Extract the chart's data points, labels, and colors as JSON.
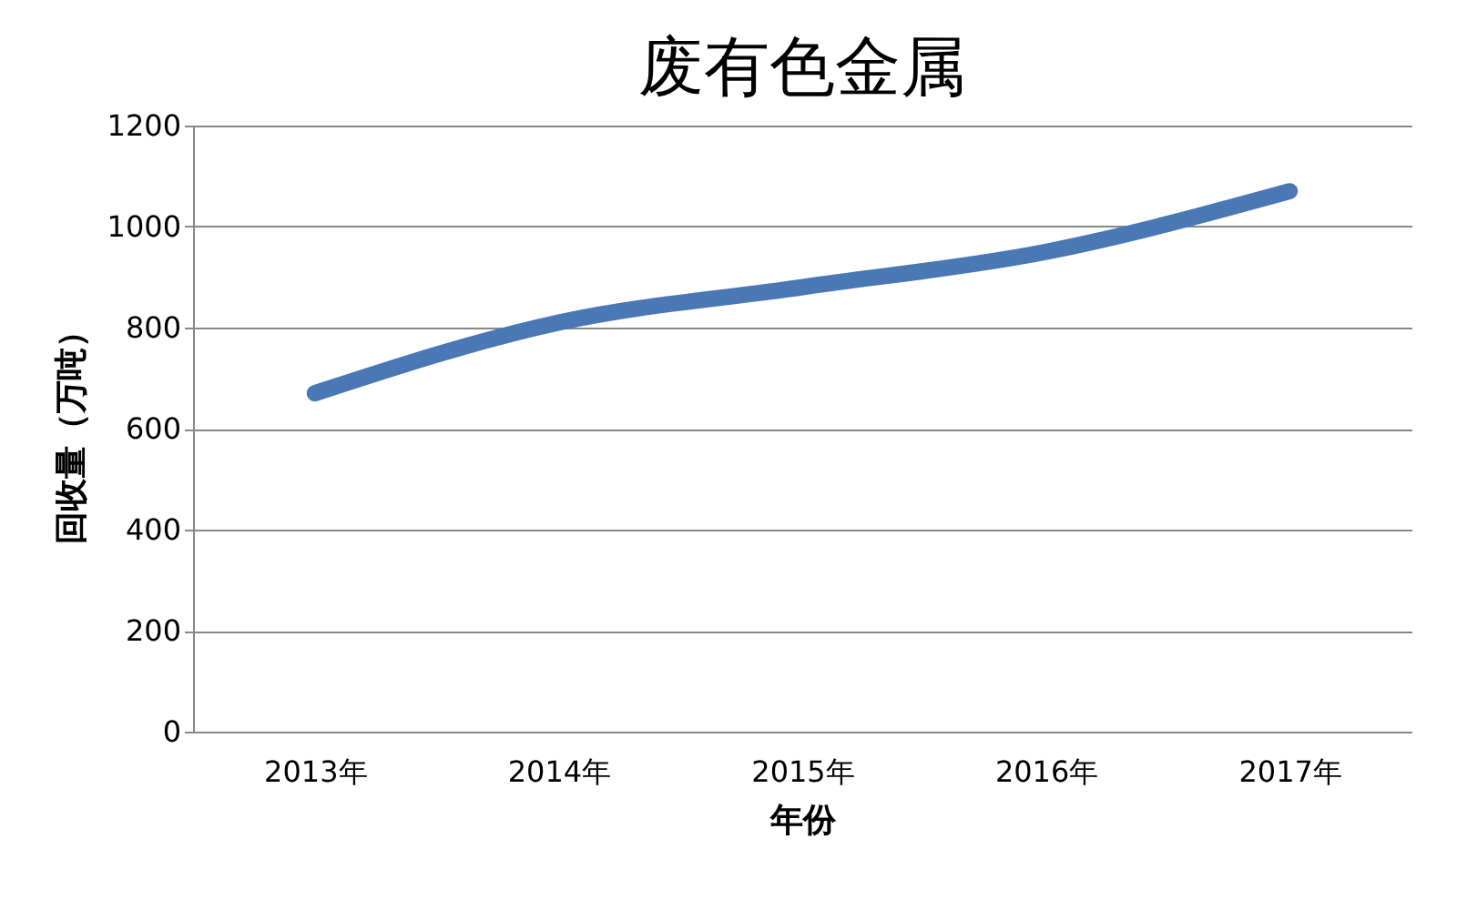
{
  "chart_data": {
    "type": "line",
    "title": "废有色金属",
    "xlabel": "年份",
    "ylabel": "回收量（万吨）",
    "categories": [
      "2013年",
      "2014年",
      "2015年",
      "2016年",
      "2017年"
    ],
    "series": [
      {
        "color": "#4a78b5",
        "values": [
          670,
          810,
          880,
          950,
          1070
        ]
      }
    ],
    "ylim": [
      0,
      1200
    ],
    "yticks": [
      0,
      200,
      400,
      600,
      800,
      1000,
      1200
    ],
    "grid": "y",
    "line_style": "solid"
  }
}
